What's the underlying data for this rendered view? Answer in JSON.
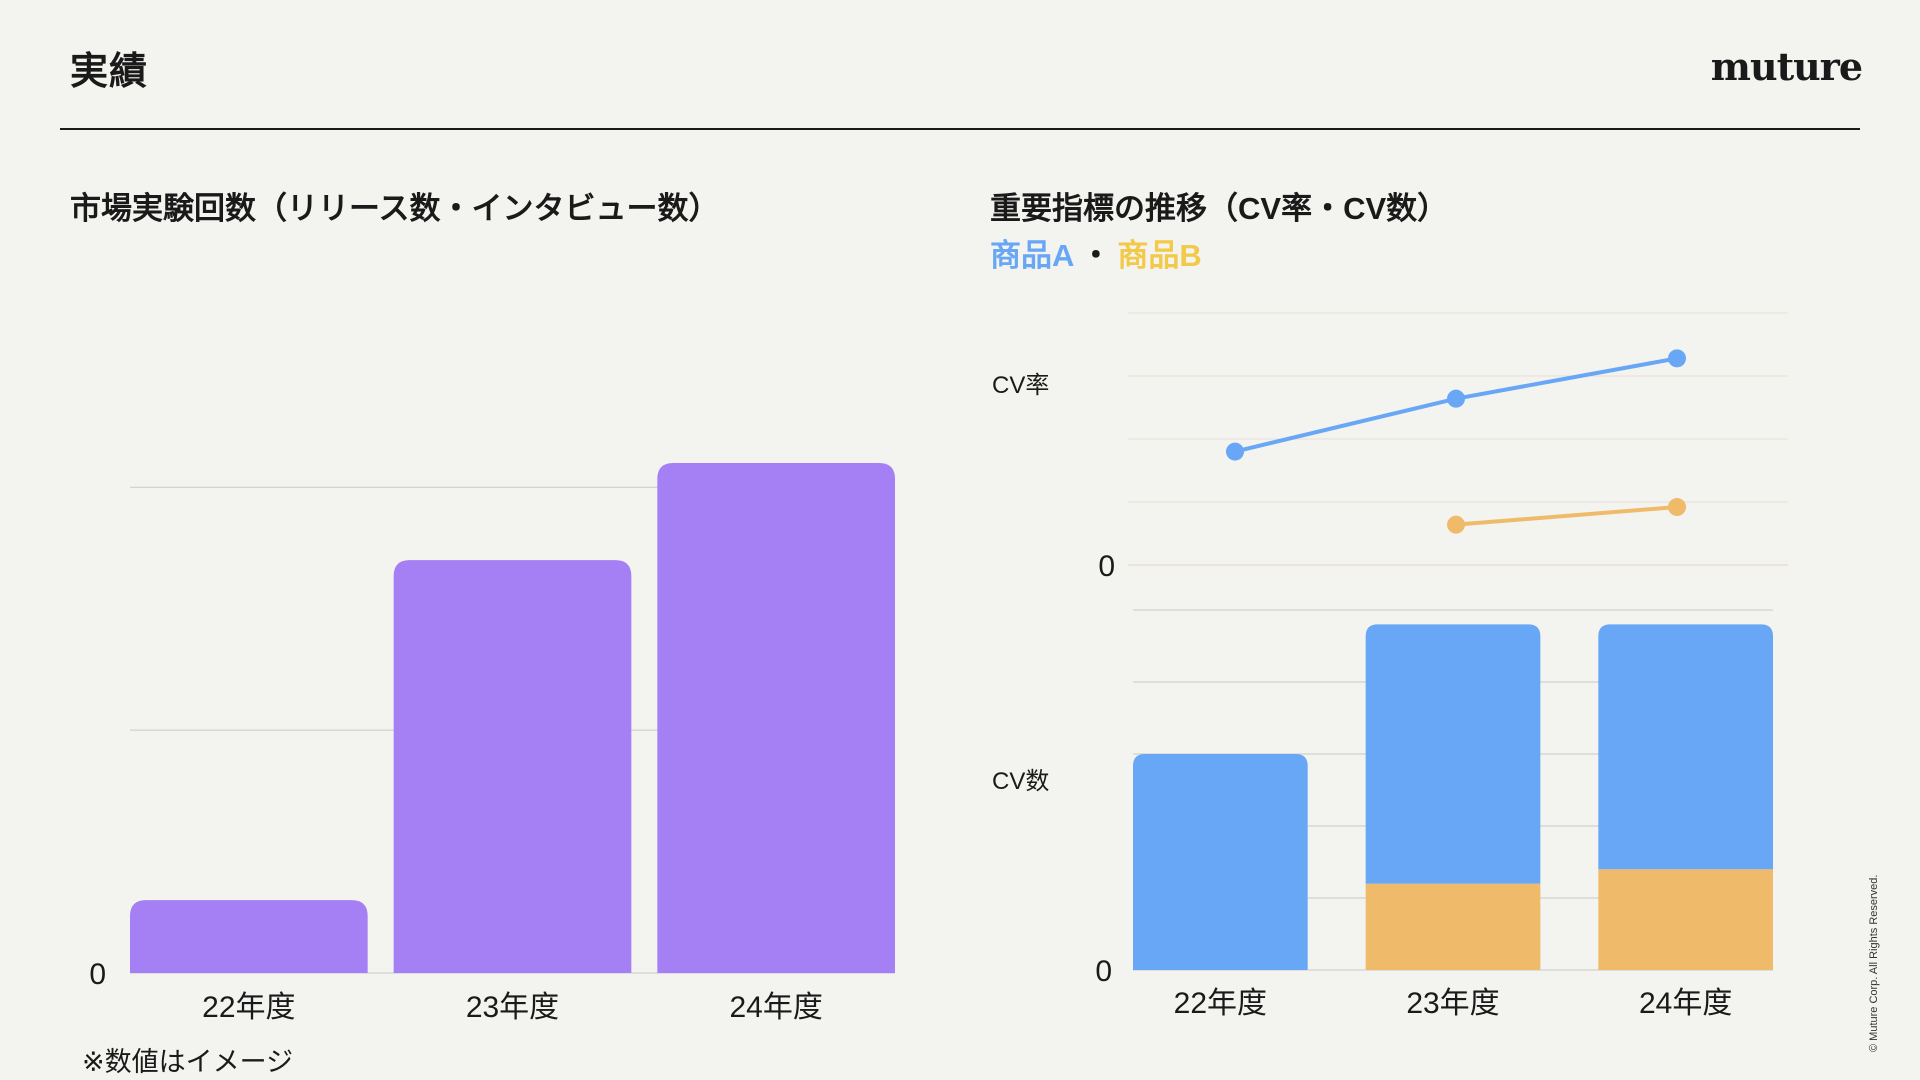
{
  "header": {
    "title": "実績",
    "logo": "muture"
  },
  "left_panel": {
    "title": "市場実験回数（リリース数・インタビュー数）"
  },
  "right_panel": {
    "title": "重要指標の推移（CV率・CV数）",
    "legend": {
      "a": "商品A",
      "separator": "・",
      "b": "商品B"
    }
  },
  "note": "※数値はイメージ",
  "copyright": "© Muture Corp. All Rights Reserved.",
  "colors": {
    "purple": "#a57ff4",
    "blue": "#68a6f6",
    "orange": "#efbb6b",
    "grid": "#c9c9c9",
    "line_grid": "#eadfd6"
  },
  "chart_data": [
    {
      "type": "bar",
      "title": "市場実験回数（リリース数・インタビュー数）",
      "categories": [
        "22年度",
        "23年度",
        "24年度"
      ],
      "values": [
        15,
        85,
        105
      ],
      "y_tick_labels": [
        "0"
      ],
      "ylim": [
        0,
        105
      ],
      "gridlines": [
        50,
        100
      ],
      "grid": true
    },
    {
      "type": "line",
      "ylabel": "CV率",
      "categories": [
        "22年度",
        "23年度",
        "24年度"
      ],
      "series": [
        {
          "name": "商品A",
          "values": [
            45,
            66,
            82
          ]
        },
        {
          "name": "商品B",
          "values": [
            null,
            16,
            23
          ]
        }
      ],
      "y_tick_labels": [
        "0"
      ],
      "ylim": [
        0,
        100
      ],
      "gridlines": [
        25,
        50,
        75,
        100
      ],
      "grid": true
    },
    {
      "type": "bar",
      "stacked": true,
      "ylabel": "CV数",
      "categories": [
        "22年度",
        "23年度",
        "24年度"
      ],
      "series": [
        {
          "name": "商品B",
          "values": [
            0,
            24,
            28
          ]
        },
        {
          "name": "商品A",
          "values": [
            60,
            72,
            68
          ]
        }
      ],
      "y_tick_labels": [
        "0"
      ],
      "ylim": [
        0,
        100
      ],
      "gridlines": [
        20,
        40,
        60,
        80,
        100
      ],
      "grid": true
    }
  ]
}
